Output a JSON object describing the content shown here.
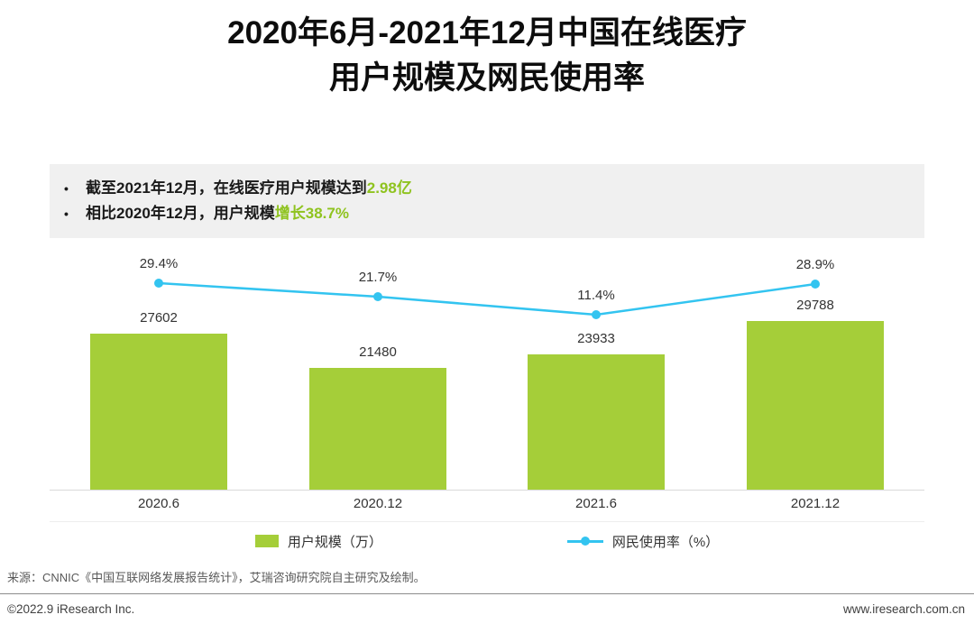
{
  "title": {
    "line1": "2020年6月-2021年12月中国在线医疗",
    "line2": "用户规模及网民使用率"
  },
  "highlights": {
    "bullets": [
      {
        "text": "截至2021年12月，在线医疗用户规模达到",
        "highlight": "2.98亿"
      },
      {
        "text": "相比2020年12月，用户规模",
        "highlight": "增长38.7%"
      }
    ],
    "highlight_color": "#8fc31f"
  },
  "chart_data": {
    "type": "bar+line",
    "categories": [
      "2020.6",
      "2020.12",
      "2021.6",
      "2021.12"
    ],
    "series": [
      {
        "name": "用户规模（万）",
        "type": "bar",
        "values": [
          27602,
          21480,
          23933,
          29788
        ],
        "color": "#a5ce39"
      },
      {
        "name": "网民使用率（%）",
        "type": "line",
        "values": [
          29.4,
          21.7,
          11.4,
          28.9
        ],
        "color": "#33c4f0"
      }
    ],
    "bar_value_labels": [
      "27602",
      "21480",
      "23933",
      "29788"
    ],
    "line_value_labels": [
      "29.4%",
      "21.7%",
      "11.4%",
      "28.9%"
    ],
    "title": "2020年6月-2021年12月中国在线医疗用户规模及网民使用率",
    "xlabel": "",
    "ylabel": "",
    "grid": false,
    "legend_position": "bottom"
  },
  "legend": [
    {
      "label": "用户规模（万）",
      "swatch": "bar-square",
      "color": "#a5ce39"
    },
    {
      "label": "网民使用率（%）",
      "swatch": "line-dot",
      "color": "#33c4f0"
    }
  ],
  "source": "来源：CNNIC《中国互联网络发展报告统计》，艾瑞咨询研究院自主研究及绘制。",
  "footer": {
    "left": "©2022.9 iResearch Inc.",
    "right": "www.iresearch.com.cn"
  }
}
